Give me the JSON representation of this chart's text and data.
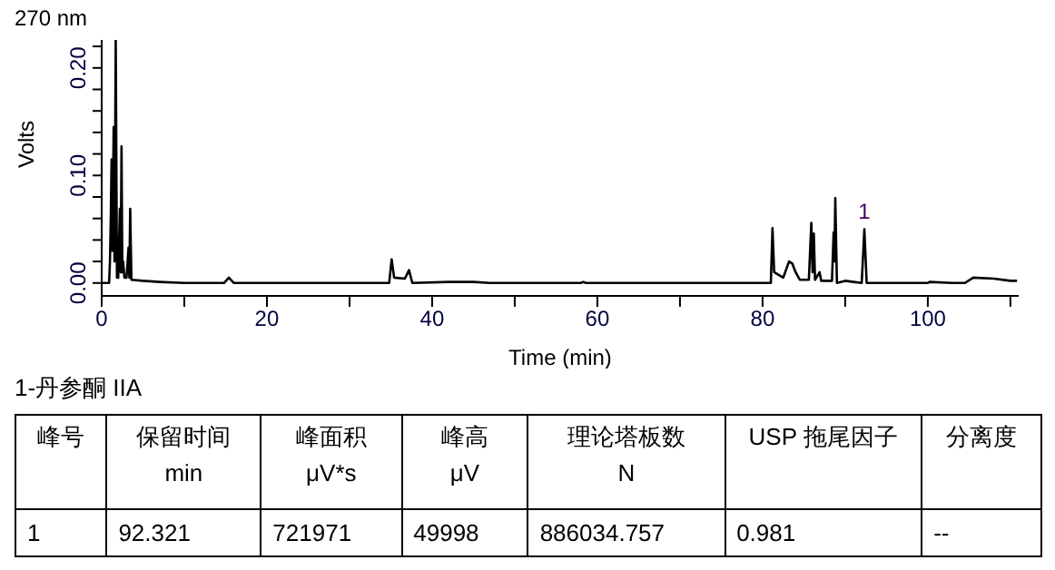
{
  "chart_data": {
    "type": "line",
    "title": "270 nm",
    "xlabel": "Time (min)",
    "ylabel": "Volts",
    "x": [
      0,
      0.9,
      1.0,
      1.1,
      1.2,
      1.3,
      1.45,
      1.55,
      1.7,
      1.85,
      2.0,
      2.2,
      2.3,
      2.4,
      2.5,
      2.6,
      2.75,
      3.0,
      3.1,
      3.25,
      3.35,
      3.45,
      3.6,
      5,
      7,
      10,
      14.8,
      15.4,
      16,
      34.8,
      35.1,
      35.4,
      36.7,
      37.2,
      37.6,
      42,
      45,
      47,
      58,
      58.3,
      58.6,
      81,
      81.2,
      81.4,
      82.5,
      83.2,
      83.6,
      84,
      84.5,
      85.6,
      85.9,
      86.05,
      86.2,
      86.35,
      86.9,
      87.1,
      88.4,
      88.6,
      88.7,
      88.8,
      89,
      90,
      91,
      92.0,
      92.321,
      92.6,
      100,
      100.2,
      103,
      104.5,
      105.5,
      108,
      110,
      110.8
    ],
    "series": [
      {
        "color": "#000000",
        "values": [
          0,
          0,
          0.02,
          0.06,
          0.115,
          0.03,
          0.145,
          0.02,
          0.226,
          0.005,
          0.005,
          0.069,
          0.01,
          0.127,
          0.01,
          0.02,
          0.005,
          0.005,
          0.015,
          0.033,
          0.005,
          0.069,
          0.003,
          0.002,
          0.001,
          0,
          0,
          0.005,
          0,
          0,
          0.022,
          0.005,
          0.004,
          0.012,
          0,
          0.001,
          0.001,
          0,
          0,
          0.001,
          0,
          0,
          0.051,
          0.01,
          0.005,
          0.02,
          0.018,
          0.01,
          0.003,
          0.003,
          0.056,
          0.01,
          0.046,
          0.003,
          0.01,
          0.002,
          0.002,
          0.047,
          0.02,
          0.079,
          0,
          0.002,
          0.001,
          0,
          0.05,
          0,
          0,
          0.001,
          0,
          0,
          0.005,
          0.004,
          0.002,
          0.002
        ]
      }
    ],
    "xlim": [
      0,
      111
    ],
    "xticks": [
      0,
      {
        "value": 10,
        "label": null
      },
      20,
      {
        "value": 30,
        "label": null
      },
      40,
      {
        "value": 50,
        "label": null
      },
      60,
      {
        "value": 70,
        "label": null
      },
      80,
      {
        "value": 90,
        "label": null
      },
      100,
      {
        "value": 110,
        "label": null
      }
    ],
    "ylim": [
      -0.012,
      0.226
    ],
    "yticks": [
      {
        "value": 0,
        "label": "0.00"
      },
      {
        "value": 0.02,
        "label": null
      },
      {
        "value": 0.04,
        "label": null
      },
      {
        "value": 0.06,
        "label": null
      },
      {
        "value": 0.08,
        "label": null
      },
      {
        "value": 0.1,
        "label": "0.10"
      },
      {
        "value": 0.12,
        "label": null
      },
      {
        "value": 0.14,
        "label": null
      },
      {
        "value": 0.16,
        "label": null
      },
      {
        "value": 0.18,
        "label": null
      },
      {
        "value": 0.2,
        "label": "0.20"
      },
      {
        "value": 0.22,
        "label": null
      }
    ],
    "marker": "none",
    "line_style": "solid",
    "annotations": [
      {
        "text": "1",
        "x": 92.321,
        "y": 0.05
      },
      "1-丹参酮 IIA",
      "峰号",
      "保留时间\nmin",
      "峰面积\nμV*s",
      "峰高\nμV",
      "理论塔板数\nN",
      "USP 拖尾因子",
      "分离度",
      "1",
      "92.321",
      "721971",
      "49998",
      "886034.757",
      "0.981",
      "--"
    ]
  }
}
